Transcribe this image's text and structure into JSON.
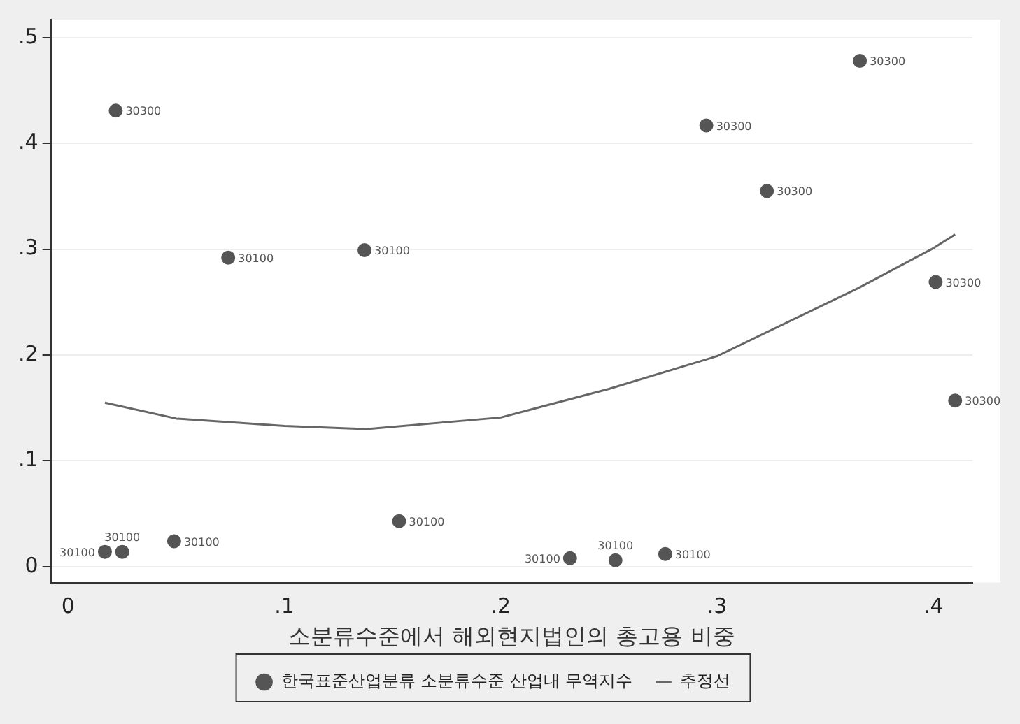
{
  "chart_data": {
    "type": "scatter",
    "xlabel": "소분류수준에서 해외현지법인의 총고용 비중",
    "xlim": [
      -0.008,
      0.418
    ],
    "ylim": [
      -0.015,
      0.517
    ],
    "xticks": [
      0,
      {
        "value": 0.1,
        "label": ".1"
      },
      {
        "value": 0.2,
        "label": ".2"
      },
      {
        "value": 0.3,
        "label": ".3"
      },
      {
        "value": 0.4,
        "label": ".4"
      }
    ],
    "yticks": [
      0,
      {
        "value": 0.1,
        "label": ".1"
      },
      {
        "value": 0.2,
        "label": ".2"
      },
      {
        "value": 0.3,
        "label": ".3"
      },
      {
        "value": 0.4,
        "label": ".4"
      },
      {
        "value": 0.5,
        "label": ".5"
      }
    ],
    "grid": "y",
    "legend": "bottom",
    "series": [
      {
        "name": "한국표준산업분류 소분류수준 산업내 무역지수",
        "color": "#555555",
        "marker": "circle",
        "x": [
          0.017,
          0.025,
          0.049,
          0.074,
          0.137,
          0.153,
          0.022,
          0.232,
          0.253,
          0.276,
          0.295,
          0.323,
          0.366,
          0.401,
          0.41
        ],
        "values": [
          0.014,
          0.014,
          0.024,
          0.292,
          0.299,
          0.043,
          0.431,
          0.008,
          0.006,
          0.012,
          0.417,
          0.355,
          0.478,
          0.269,
          0.157
        ]
      },
      {
        "type": "line",
        "name": "추정선",
        "color": "#666666",
        "marker": "none",
        "line_style": "solid",
        "x": [
          0.017,
          0.05,
          0.1,
          0.138,
          0.2,
          0.25,
          0.3,
          0.365,
          0.4,
          0.41
        ],
        "values": [
          0.155,
          0.14,
          0.133,
          0.13,
          0.141,
          0.168,
          0.199,
          0.263,
          0.301,
          0.314
        ]
      }
    ],
    "annotations": [
      {
        "text": "30100",
        "x": 0.017,
        "y": 0.014
      },
      {
        "text": "30100",
        "x": 0.025,
        "y": 0.014
      },
      {
        "text": "30100",
        "x": 0.049,
        "y": 0.024
      },
      {
        "text": "30100",
        "x": 0.074,
        "y": 0.292
      },
      {
        "text": "30100",
        "x": 0.137,
        "y": 0.299
      },
      {
        "text": "30100",
        "x": 0.153,
        "y": 0.043
      },
      {
        "text": "30300",
        "x": 0.022,
        "y": 0.431
      },
      {
        "text": "30100",
        "x": 0.232,
        "y": 0.008
      },
      {
        "text": "30100",
        "x": 0.253,
        "y": 0.006
      },
      {
        "text": "30100",
        "x": 0.276,
        "y": 0.012
      },
      {
        "text": "30300",
        "x": 0.295,
        "y": 0.417
      },
      {
        "text": "30300",
        "x": 0.323,
        "y": 0.355
      },
      {
        "text": "30300",
        "x": 0.366,
        "y": 0.478
      },
      {
        "text": "30300",
        "x": 0.401,
        "y": 0.269
      },
      {
        "text": "30300",
        "x": 0.41,
        "y": 0.157
      }
    ]
  }
}
